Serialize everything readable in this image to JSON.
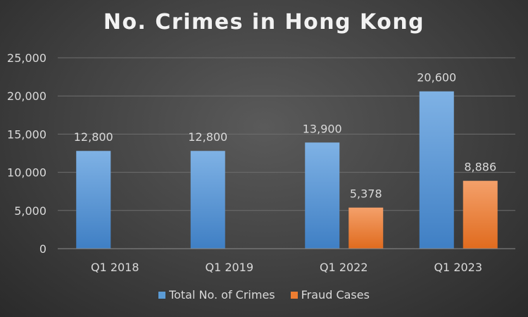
{
  "chart_data": {
    "type": "bar",
    "title": "No. Crimes in Hong Kong",
    "categories": [
      "Q1 2018",
      "Q1 2019",
      "Q1 2022",
      "Q1 2023"
    ],
    "series": [
      {
        "name": "Total No. of Crimes",
        "values": [
          12800,
          12800,
          13900,
          20600
        ],
        "labels": [
          "12,800",
          "12,800",
          "13,900",
          "20,600"
        ],
        "color": "#5b9bd5"
      },
      {
        "name": "Fraud Cases",
        "values": [
          null,
          null,
          5378,
          8886
        ],
        "labels": [
          null,
          null,
          "5,378",
          "8,886"
        ],
        "color": "#ed7d31"
      }
    ],
    "ylim": [
      0,
      25000
    ],
    "yticks": [
      0,
      5000,
      10000,
      15000,
      20000,
      25000
    ],
    "ytick_labels": [
      "0",
      "5,000",
      "10,000",
      "15,000",
      "20,000",
      "25,000"
    ],
    "grid": true,
    "legend_position": "bottom"
  }
}
